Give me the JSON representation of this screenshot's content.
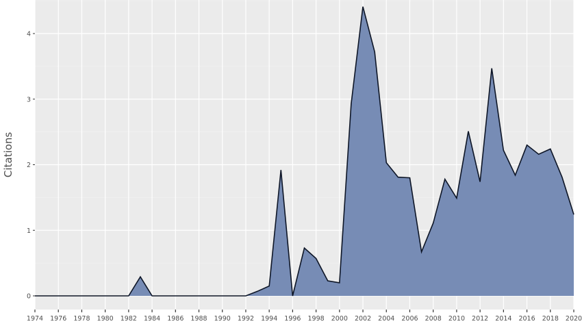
{
  "chart_data": {
    "type": "area",
    "title": "",
    "xlabel": "",
    "ylabel": "Citations",
    "xlim": [
      1974,
      2020
    ],
    "ylim": [
      -0.1,
      4.5
    ],
    "grid": true,
    "legend": null,
    "fill_color": "#7388b3",
    "line_color": "#0d1526",
    "panel_background": "#ebebeb",
    "x_ticks": [
      "1974",
      "1976",
      "1978",
      "1980",
      "1982",
      "1984",
      "1986",
      "1988",
      "1990",
      "1992",
      "1994",
      "1996",
      "1998",
      "2000",
      "2002",
      "2004",
      "2006",
      "2008",
      "2010",
      "2012",
      "2014",
      "2016",
      "2018",
      "2020"
    ],
    "y_ticks": [
      "0",
      "1",
      "2",
      "3",
      "4"
    ],
    "x": [
      1974,
      1975,
      1976,
      1977,
      1978,
      1979,
      1980,
      1981,
      1982,
      1983,
      1984,
      1985,
      1986,
      1987,
      1988,
      1989,
      1990,
      1991,
      1992,
      1993,
      1994,
      1995,
      1996,
      1997,
      1998,
      1999,
      2000,
      2001,
      2002,
      2003,
      2004,
      2005,
      2006,
      2007,
      2008,
      2009,
      2010,
      2011,
      2012,
      2013,
      2014,
      2015,
      2016,
      2017,
      2018,
      2019,
      2020
    ],
    "series": [
      {
        "name": "Citations",
        "values": [
          0,
          0,
          0,
          0,
          0,
          0,
          0,
          0,
          0,
          0.29,
          0,
          0,
          0,
          0,
          0,
          0,
          0,
          0,
          0,
          0.07,
          0.15,
          1.92,
          0,
          0.73,
          0.57,
          0.23,
          0.2,
          2.93,
          4.41,
          3.72,
          2.03,
          1.81,
          1.8,
          0.67,
          1.11,
          1.78,
          1.49,
          2.51,
          1.74,
          3.47,
          2.22,
          1.84,
          2.3,
          2.16,
          2.24,
          1.81,
          1.24
        ]
      }
    ]
  }
}
